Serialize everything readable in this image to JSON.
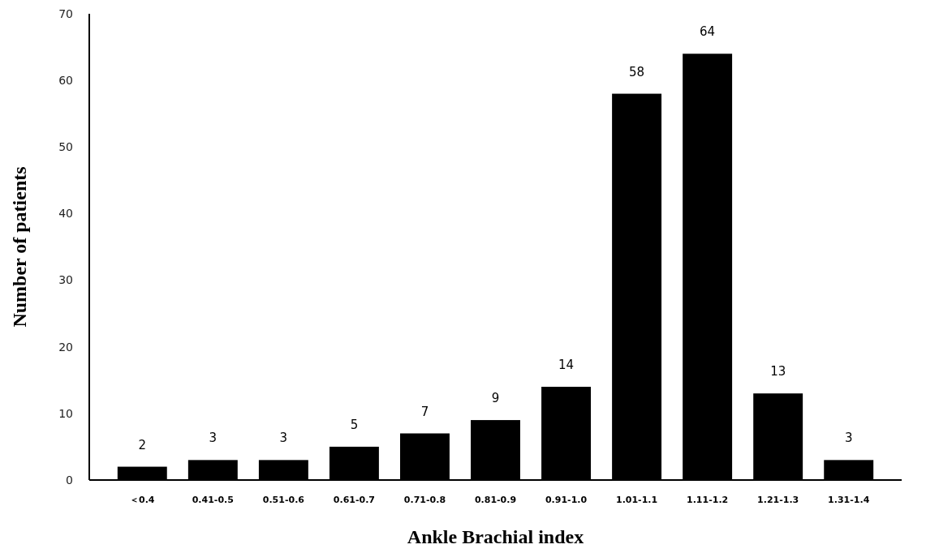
{
  "chart_data": {
    "type": "bar",
    "xlabel": "Ankle Brachial index",
    "ylabel": "Number of patients",
    "categories": [
      "＜0.4",
      "0.41-0.5",
      "0.51-0.6",
      "0.61-0.7",
      "0.71-0.8",
      "0.81-0.9",
      "0.91-1.0",
      "1.01-1.1",
      "1.11-1.2",
      "1.21-1.3",
      "1.31-1.4"
    ],
    "values": [
      2,
      3,
      3,
      5,
      7,
      9,
      14,
      58,
      64,
      13,
      3
    ],
    "color": "#000000",
    "ylim": [
      0,
      70
    ],
    "yticks": [
      0,
      10,
      20,
      30,
      40,
      50,
      60,
      70
    ],
    "grid": false,
    "data_labels": true
  }
}
